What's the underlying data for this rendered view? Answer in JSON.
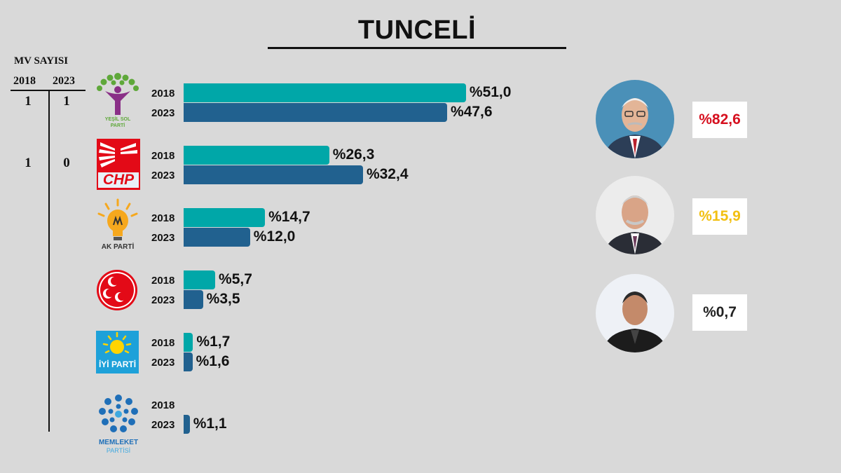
{
  "title": "TUNCELİ",
  "mv": {
    "title": "MV SAYISI",
    "year_2018": "2018",
    "year_2023": "2023",
    "rows": [
      {
        "v2018": "1",
        "v2023": "1"
      },
      {
        "v2018": "1",
        "v2023": "0"
      }
    ]
  },
  "logos": {
    "yesil_sol": "YEŞİL SOL\nPARTİ",
    "chp": "CHP",
    "ak_parti": "AK PARTİ",
    "iyi": "İYİ PARTİ",
    "memleket_1": "MEMLEKET",
    "memleket_2": "PARTİSİ"
  },
  "colors": {
    "bar_2018": "#00a7a8",
    "bar_2023": "#21618f",
    "cand1": "#d6101f",
    "cand2": "#f2c012",
    "cand3": "#222222"
  },
  "chart_data": {
    "type": "bar",
    "orientation": "horizontal",
    "categories": [
      "YEŞİL SOL PARTİ",
      "CHP",
      "AK PARTİ",
      "MHP",
      "İYİ PARTİ",
      "MEMLEKET PARTİSİ"
    ],
    "series": [
      {
        "name": "2018",
        "values": [
          51.0,
          26.3,
          14.7,
          5.7,
          1.7,
          null
        ],
        "labels": [
          "%51,0",
          "%26,3",
          "%14,7",
          "%5,7",
          "%1,7",
          ""
        ]
      },
      {
        "name": "2023",
        "values": [
          47.6,
          32.4,
          12.0,
          3.5,
          1.6,
          1.1
        ],
        "labels": [
          "%47,6",
          "%32,4",
          "%12,0",
          "%3,5",
          "%1,6",
          "%1,1"
        ]
      }
    ],
    "year_labels": [
      "2018",
      "2023"
    ],
    "presidential": [
      {
        "value": 82.6,
        "label": "%82,6"
      },
      {
        "value": 15.9,
        "label": "%15,9"
      },
      {
        "value": 0.7,
        "label": "%0,7"
      }
    ]
  }
}
